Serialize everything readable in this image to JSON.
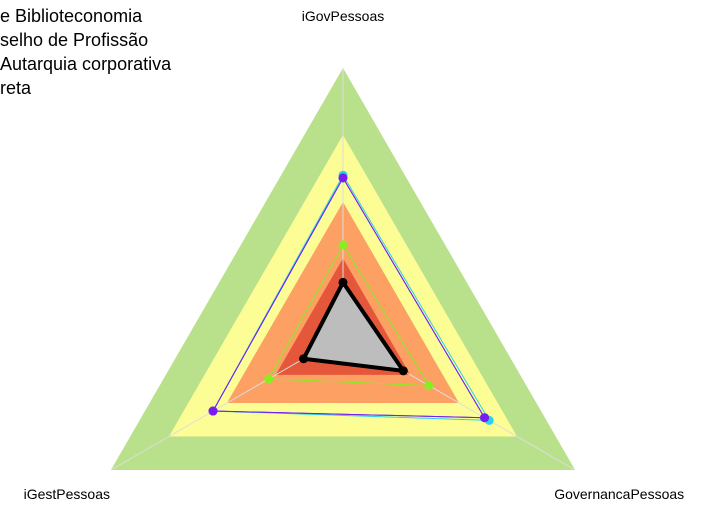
{
  "chart_data": {
    "type": "radar",
    "legend_text": [
      "e Biblioteconomia",
      "selho de Profissão",
      "Autarquia corporativa",
      "reta"
    ],
    "categories": [
      "iGovPessoas",
      "GovernancaPessoas",
      "iGestPessoas"
    ],
    "rlim": [
      0,
      1
    ],
    "bands": [
      {
        "level": 1.0,
        "color": "#b9e08a"
      },
      {
        "level": 0.75,
        "color": "#fdfd96"
      },
      {
        "level": 0.5,
        "color": "#fca064"
      },
      {
        "level": 0.29,
        "color": "#e4573a"
      }
    ],
    "series": [
      {
        "color": "#2ad4e8",
        "values": [
          0.6,
          0.63,
          0.56
        ]
      },
      {
        "color": "#3355ff",
        "values": [
          0.59,
          0.61,
          0.56
        ]
      },
      {
        "color": "#7a1cf0",
        "values": [
          0.59,
          0.61,
          0.56
        ]
      },
      {
        "color": "#88ee22",
        "values": [
          0.34,
          0.37,
          0.32
        ]
      },
      {
        "color": "#000000",
        "fill": "#bdbdbd",
        "values": [
          0.2,
          0.26,
          0.17
        ]
      }
    ]
  }
}
